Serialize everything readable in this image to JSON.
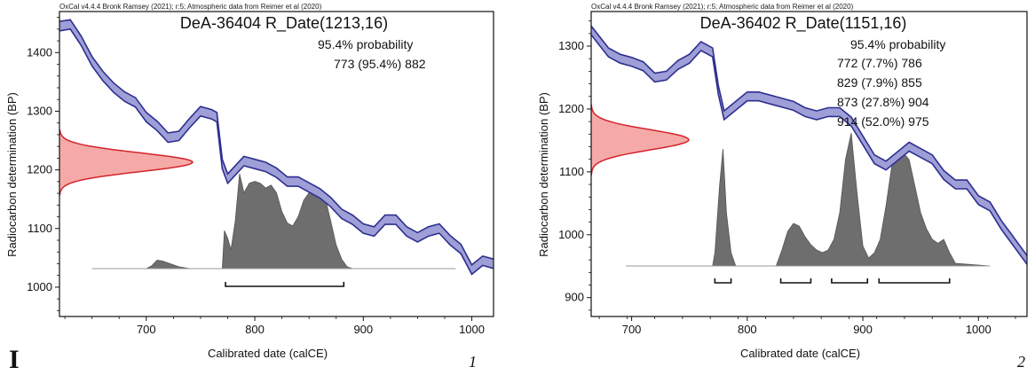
{
  "figure_label": "I",
  "chart_data": [
    {
      "type": "area",
      "panel_number": "1",
      "header": "OxCal v4.4.4 Bronk Ramsey (2021); r:5; Atmospheric data from Reimer et al (2020)",
      "title": "DeA-36404 R_Date(1213,16)",
      "probability_label": "95.4% probability",
      "ranges": [
        {
          "text": "773 (95.4%) 882",
          "from": 773,
          "to": 882
        }
      ],
      "xlabel": "Calibrated date (calCE)",
      "ylabel": "Radiocarbon determination (BP)",
      "xlim": [
        620,
        1020
      ],
      "ylim": [
        950,
        1470
      ],
      "xticks": [
        700,
        800,
        900,
        1000
      ],
      "yticks": [
        1000,
        1100,
        1200,
        1300,
        1400
      ],
      "radiocarbon": {
        "mean": 1213,
        "sigma": 16
      },
      "calibration_curve": {
        "x": [
          620,
          630,
          640,
          650,
          660,
          670,
          680,
          690,
          700,
          710,
          720,
          730,
          740,
          750,
          760,
          765,
          770,
          775,
          780,
          790,
          800,
          810,
          820,
          830,
          840,
          850,
          860,
          870,
          880,
          890,
          900,
          910,
          920,
          930,
          940,
          950,
          960,
          970,
          980,
          990,
          1000,
          1010,
          1020
        ],
        "y": [
          1445,
          1448,
          1420,
          1385,
          1360,
          1340,
          1325,
          1315,
          1290,
          1275,
          1255,
          1258,
          1280,
          1300,
          1295,
          1290,
          1210,
          1185,
          1195,
          1215,
          1210,
          1205,
          1195,
          1180,
          1180,
          1170,
          1160,
          1145,
          1125,
          1115,
          1100,
          1095,
          1115,
          1115,
          1095,
          1085,
          1095,
          1100,
          1080,
          1065,
          1030,
          1045,
          1040
        ],
        "band": 8
      },
      "calibrated_density": {
        "x": [
          650,
          700,
          705,
          710,
          715,
          720,
          725,
          730,
          735,
          740,
          765,
          770,
          772,
          775,
          778,
          782,
          786,
          790,
          795,
          800,
          805,
          810,
          815,
          820,
          825,
          830,
          835,
          840,
          845,
          850,
          855,
          860,
          865,
          870,
          875,
          880,
          885,
          890,
          985
        ],
        "p": [
          0,
          0,
          0.03,
          0.09,
          0.08,
          0.06,
          0.04,
          0.02,
          0.01,
          0,
          0,
          0,
          0.4,
          0.32,
          0.2,
          0.5,
          1.0,
          0.8,
          0.9,
          0.92,
          0.9,
          0.85,
          0.88,
          0.8,
          0.6,
          0.48,
          0.45,
          0.55,
          0.72,
          0.8,
          0.83,
          0.82,
          0.74,
          0.5,
          0.25,
          0.1,
          0.02,
          0,
          0
        ]
      }
    },
    {
      "type": "area",
      "panel_number": "2",
      "header": "OxCal v4.4.4 Bronk Ramsey (2021); r:5; Atmospheric data from Reimer et al (2020)",
      "title": "DeA-36402 R_Date(1151,16)",
      "probability_label": "95.4% probability",
      "ranges": [
        {
          "text": "772 (7.7%) 786",
          "from": 772,
          "to": 786
        },
        {
          "text": "829 (7.9%) 855",
          "from": 829,
          "to": 855
        },
        {
          "text": "873 (27.8%) 904",
          "from": 873,
          "to": 904
        },
        {
          "text": "914 (52.0%) 975",
          "from": 914,
          "to": 975
        }
      ],
      "xlabel": "Calibrated date (calCE)",
      "ylabel": "Radiocarbon determination (BP)",
      "xlim": [
        665,
        1042
      ],
      "ylim": [
        870,
        1355
      ],
      "xticks": [
        700,
        800,
        900,
        1000
      ],
      "yticks": [
        900,
        1000,
        1100,
        1200,
        1300
      ],
      "radiocarbon": {
        "mean": 1151,
        "sigma": 16
      },
      "calibration_curve": {
        "x": [
          665,
          680,
          690,
          700,
          710,
          720,
          730,
          740,
          750,
          760,
          765,
          770,
          775,
          780,
          790,
          800,
          810,
          820,
          830,
          840,
          850,
          860,
          870,
          880,
          890,
          900,
          910,
          920,
          930,
          940,
          950,
          960,
          970,
          980,
          990,
          1000,
          1010,
          1020,
          1030,
          1042
        ],
        "y": [
          1325,
          1290,
          1280,
          1275,
          1268,
          1250,
          1253,
          1270,
          1280,
          1300,
          1295,
          1290,
          1230,
          1190,
          1205,
          1220,
          1220,
          1215,
          1210,
          1205,
          1195,
          1190,
          1195,
          1195,
          1180,
          1150,
          1120,
          1110,
          1125,
          1140,
          1130,
          1120,
          1095,
          1080,
          1080,
          1055,
          1045,
          1015,
          990,
          960
        ],
        "band": 7
      },
      "calibrated_density": {
        "x": [
          695,
          770,
          772,
          776,
          779,
          782,
          786,
          790,
          795,
          825,
          830,
          835,
          840,
          845,
          850,
          855,
          860,
          865,
          870,
          875,
          880,
          885,
          890,
          895,
          900,
          905,
          910,
          915,
          920,
          925,
          930,
          935,
          940,
          945,
          950,
          955,
          960,
          965,
          970,
          975,
          980,
          1010
        ],
        "p": [
          0,
          0,
          0.1,
          0.6,
          0.88,
          0.4,
          0.1,
          0,
          0,
          0,
          0.12,
          0.26,
          0.32,
          0.3,
          0.22,
          0.16,
          0.12,
          0.1,
          0.12,
          0.2,
          0.4,
          0.8,
          1.0,
          0.55,
          0.15,
          0.06,
          0.1,
          0.2,
          0.45,
          0.75,
          0.84,
          0.85,
          0.8,
          0.6,
          0.4,
          0.28,
          0.2,
          0.17,
          0.2,
          0.1,
          0.02,
          0
        ]
      }
    }
  ]
}
